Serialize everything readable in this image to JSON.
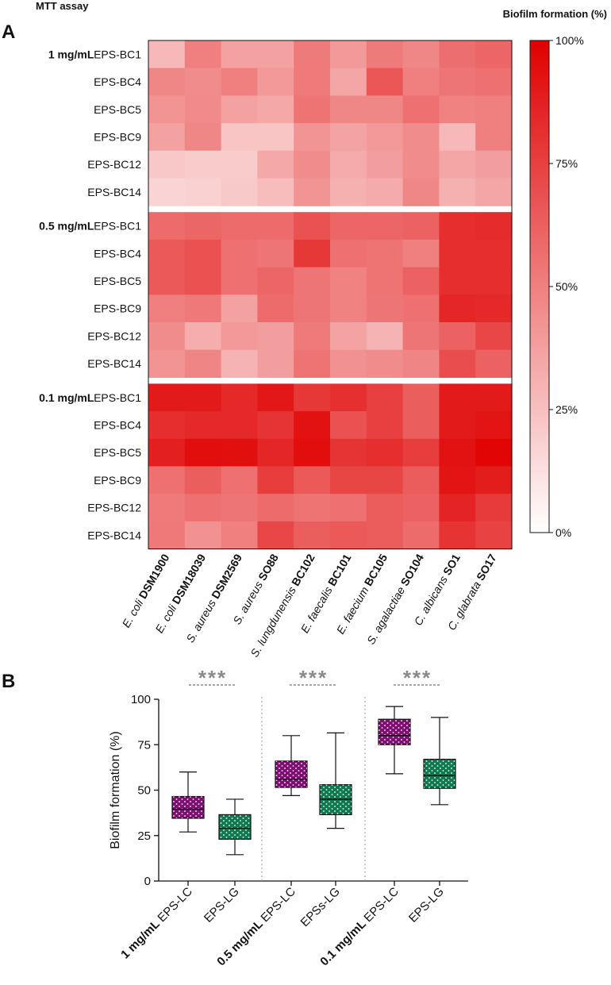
{
  "header": {
    "left": "MTT assay",
    "right": "Biofilm formation (%)"
  },
  "chart_data": [
    {
      "type": "heatmap",
      "panel": "A",
      "value_unit": "Biofilm formation (%)",
      "colorbar": {
        "range": [
          0,
          100
        ],
        "ticks": [
          "100%",
          "75%",
          "50%",
          "25%",
          "0%"
        ],
        "low_color": "#ffffff",
        "high_color": "#e00000"
      },
      "groups": [
        {
          "label": "1 mg/mL",
          "rows": [
            "EPS-BC1",
            "EPS-BC4",
            "EPS-BC5",
            "EPS-BC9",
            "EPS-BC12",
            "EPS-BC14"
          ]
        },
        {
          "label": "0.5 mg/mL",
          "rows": [
            "EPS-BC1",
            "EPS-BC4",
            "EPS-BC5",
            "EPS-BC9",
            "EPS-BC12",
            "EPS-BC14"
          ]
        },
        {
          "label": "0.1 mg/mL",
          "rows": [
            "EPS-BC1",
            "EPS-BC4",
            "EPS-BC5",
            "EPS-BC9",
            "EPS-BC12",
            "EPS-BC14"
          ]
        }
      ],
      "columns": [
        {
          "italic": "E. coli",
          "bold": "DSM1900"
        },
        {
          "italic": "E. coli",
          "bold": "DSM18039"
        },
        {
          "italic": "S. aureus",
          "bold": "DSM2569"
        },
        {
          "italic": "S. aureus",
          "bold": "SO88"
        },
        {
          "italic": "S. lungdunensis",
          "bold": "BC102"
        },
        {
          "italic": "E. faecalis",
          "bold": "BC101"
        },
        {
          "italic": "E. faecium",
          "bold": "BC105"
        },
        {
          "italic": "S. agalactiae",
          "bold": "SO104"
        },
        {
          "italic": "C. albicans",
          "bold": "SO1"
        },
        {
          "italic": "C. glabrata",
          "bold": "SO17"
        }
      ],
      "values": [
        [
          28,
          50,
          37,
          37,
          52,
          40,
          52,
          47,
          57,
          60
        ],
        [
          47,
          45,
          50,
          40,
          52,
          35,
          66,
          50,
          54,
          56
        ],
        [
          42,
          46,
          37,
          34,
          55,
          47,
          47,
          56,
          49,
          50
        ],
        [
          37,
          47,
          23,
          23,
          42,
          36,
          40,
          45,
          28,
          50
        ],
        [
          22,
          20,
          20,
          34,
          45,
          33,
          38,
          45,
          35,
          38
        ],
        [
          17,
          18,
          21,
          26,
          42,
          31,
          33,
          47,
          31,
          35
        ],
        [
          58,
          60,
          58,
          58,
          68,
          60,
          60,
          62,
          82,
          83
        ],
        [
          65,
          68,
          56,
          54,
          78,
          56,
          55,
          50,
          82,
          82
        ],
        [
          65,
          68,
          56,
          60,
          54,
          49,
          55,
          62,
          82,
          82
        ],
        [
          50,
          53,
          37,
          58,
          54,
          49,
          54,
          56,
          85,
          84
        ],
        [
          45,
          32,
          40,
          38,
          52,
          36,
          30,
          54,
          62,
          72
        ],
        [
          42,
          48,
          30,
          38,
          55,
          43,
          45,
          48,
          70,
          62
        ],
        [
          90,
          90,
          84,
          91,
          78,
          81,
          75,
          63,
          90,
          90
        ],
        [
          82,
          84,
          84,
          80,
          93,
          68,
          75,
          63,
          90,
          92
        ],
        [
          88,
          95,
          94,
          85,
          95,
          80,
          82,
          76,
          93,
          98
        ],
        [
          56,
          63,
          56,
          76,
          65,
          73,
          73,
          64,
          92,
          89
        ],
        [
          52,
          56,
          54,
          58,
          55,
          56,
          64,
          62,
          86,
          77
        ],
        [
          53,
          43,
          50,
          72,
          63,
          65,
          64,
          58,
          80,
          74
        ]
      ]
    },
    {
      "type": "box",
      "panel": "B",
      "ylabel": "Biofilm formation (%)",
      "ylim": [
        0,
        100
      ],
      "yticks": [
        0,
        25,
        50,
        75,
        100
      ],
      "significance": [
        "***",
        "***",
        "***"
      ],
      "boxes": [
        {
          "group": "1 mg/mL",
          "label": "EPS-LC",
          "color": "#7f0f73",
          "min": 27,
          "q1": 34.5,
          "median": 39.5,
          "q3": 46.5,
          "max": 60
        },
        {
          "group": "",
          "label": "EPS-LG",
          "color": "#0f7a4f",
          "min": 14.5,
          "q1": 23,
          "median": 29,
          "q3": 36.5,
          "max": 45
        },
        {
          "group": "0.5 mg/mL",
          "label": "EPS-LC",
          "color": "#7f0f73",
          "min": 47,
          "q1": 51.5,
          "median": 56,
          "q3": 66,
          "max": 80
        },
        {
          "group": "",
          "label": "EPSs-LG",
          "color": "#0f7a4f",
          "min": 29,
          "q1": 36.5,
          "median": 45,
          "q3": 53,
          "max": 81.5
        },
        {
          "group": "0.1 mg/mL",
          "label": "EPS-LC",
          "color": "#7f0f73",
          "min": 59,
          "q1": 75,
          "median": 80,
          "q3": 89,
          "max": 96
        },
        {
          "group": "",
          "label": "EPS-LG",
          "color": "#0f7a4f",
          "min": 42,
          "q1": 51,
          "median": 58,
          "q3": 67,
          "max": 90
        }
      ]
    }
  ]
}
